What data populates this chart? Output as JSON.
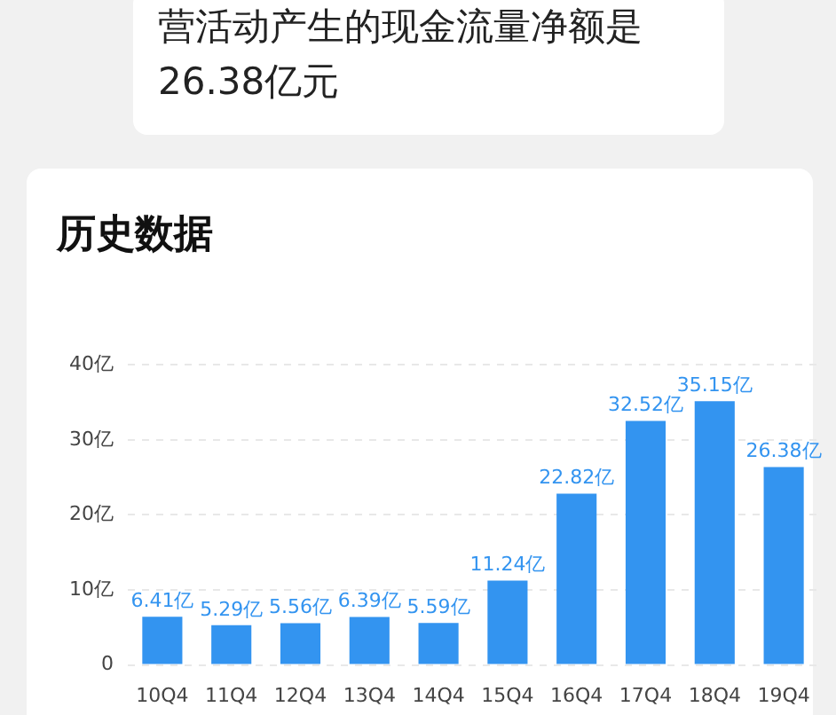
{
  "chart_data": {
    "type": "bar",
    "title": "历史数据",
    "annotations": [
      "营活动产生的现金流量净额是26.38亿元"
    ],
    "categories": [
      "10Q4",
      "11Q4",
      "12Q4",
      "13Q4",
      "14Q4",
      "15Q4",
      "16Q4",
      "17Q4",
      "18Q4",
      "19Q4"
    ],
    "values": [
      6.41,
      5.29,
      5.56,
      6.39,
      5.59,
      11.24,
      22.82,
      32.52,
      35.15,
      26.38
    ],
    "value_labels": [
      "6.41亿",
      "5.29亿",
      "5.56亿",
      "6.39亿",
      "5.59亿",
      "11.24亿",
      "22.82亿",
      "32.52亿",
      "35.15亿",
      "26.38亿"
    ],
    "color": "#3394f0",
    "ylim": [
      0,
      40
    ],
    "yticks": [
      0,
      {
        "value": 10,
        "label": "10亿"
      },
      {
        "value": 20,
        "label": "20亿"
      },
      {
        "value": 30,
        "label": "30亿"
      },
      {
        "value": 40,
        "label": "40亿"
      }
    ],
    "grid": "y"
  }
}
